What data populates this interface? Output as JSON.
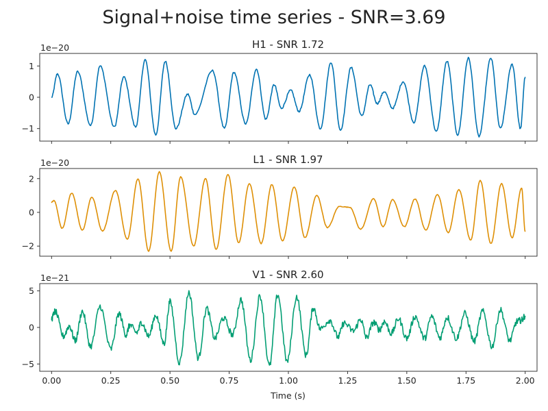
{
  "figure": {
    "suptitle": "Signal+noise time series - SNR=3.69",
    "xlabel": "Time (s)"
  },
  "chart_data": [
    {
      "type": "line",
      "title": "H1 - SNR 1.72",
      "offset_label": "1e−20",
      "color": "#0072b2",
      "xlim": [
        -0.05,
        2.05
      ],
      "ylim": [
        -1.4,
        1.4
      ],
      "xticks": [
        0.0,
        0.25,
        0.5,
        0.75,
        1.0,
        1.25,
        1.5,
        1.75,
        2.0
      ],
      "xtick_labels": [],
      "yticks": [
        -1,
        0,
        1
      ],
      "ytick_labels": [
        "−1",
        "0",
        "1"
      ],
      "noise": 0.03,
      "peaks": [
        [
          0.0,
          0.0
        ],
        [
          0.025,
          0.75
        ],
        [
          0.07,
          -0.85
        ],
        [
          0.11,
          0.82
        ],
        [
          0.165,
          -0.9
        ],
        [
          0.205,
          1.0
        ],
        [
          0.265,
          -0.95
        ],
        [
          0.305,
          0.65
        ],
        [
          0.355,
          -0.95
        ],
        [
          0.395,
          1.2
        ],
        [
          0.44,
          -1.2
        ],
        [
          0.48,
          1.15
        ],
        [
          0.525,
          -1.0
        ],
        [
          0.575,
          0.1
        ],
        [
          0.605,
          -0.55
        ],
        [
          0.68,
          0.85
        ],
        [
          0.73,
          -1.0
        ],
        [
          0.77,
          0.8
        ],
        [
          0.82,
          -0.85
        ],
        [
          0.865,
          0.9
        ],
        [
          0.905,
          -0.7
        ],
        [
          0.94,
          0.4
        ],
        [
          0.97,
          -0.35
        ],
        [
          1.01,
          0.22
        ],
        [
          1.045,
          -0.45
        ],
        [
          1.09,
          0.72
        ],
        [
          1.135,
          -1.0
        ],
        [
          1.18,
          1.12
        ],
        [
          1.22,
          -1.05
        ],
        [
          1.265,
          0.95
        ],
        [
          1.31,
          -0.6
        ],
        [
          1.345,
          0.4
        ],
        [
          1.375,
          -0.2
        ],
        [
          1.405,
          0.18
        ],
        [
          1.44,
          -0.35
        ],
        [
          1.485,
          0.5
        ],
        [
          1.53,
          -0.8
        ],
        [
          1.575,
          1.0
        ],
        [
          1.625,
          -1.1
        ],
        [
          1.67,
          1.15
        ],
        [
          1.715,
          -1.2
        ],
        [
          1.76,
          1.25
        ],
        [
          1.805,
          -1.25
        ],
        [
          1.855,
          1.25
        ],
        [
          1.895,
          -1.0
        ],
        [
          1.945,
          1.05
        ],
        [
          1.98,
          -1.0
        ],
        [
          2.0,
          0.65
        ]
      ]
    },
    {
      "type": "line",
      "title": "L1 - SNR 1.97",
      "offset_label": "1e−20",
      "color": "#de8f05",
      "xlim": [
        -0.05,
        2.05
      ],
      "ylim": [
        -2.6,
        2.6
      ],
      "xticks": [
        0.0,
        0.25,
        0.5,
        0.75,
        1.0,
        1.25,
        1.5,
        1.75,
        2.0
      ],
      "xtick_labels": [],
      "yticks": [
        -2,
        0,
        2
      ],
      "ytick_labels": [
        "−2",
        "0",
        "2"
      ],
      "noise": 0.02,
      "peaks": [
        [
          0.0,
          0.6
        ],
        [
          0.01,
          0.7
        ],
        [
          0.045,
          -0.95
        ],
        [
          0.085,
          1.15
        ],
        [
          0.13,
          -1.05
        ],
        [
          0.17,
          0.9
        ],
        [
          0.215,
          -1.1
        ],
        [
          0.27,
          1.3
        ],
        [
          0.32,
          -1.6
        ],
        [
          0.365,
          2.0
        ],
        [
          0.41,
          -2.3
        ],
        [
          0.455,
          2.4
        ],
        [
          0.505,
          -2.3
        ],
        [
          0.545,
          2.1
        ],
        [
          0.6,
          -2.0
        ],
        [
          0.65,
          2.0
        ],
        [
          0.695,
          -2.2
        ],
        [
          0.745,
          2.25
        ],
        [
          0.79,
          -1.8
        ],
        [
          0.835,
          1.7
        ],
        [
          0.885,
          -1.85
        ],
        [
          0.93,
          1.65
        ],
        [
          0.975,
          -1.7
        ],
        [
          1.025,
          1.5
        ],
        [
          1.07,
          -1.5
        ],
        [
          1.12,
          1.0
        ],
        [
          1.165,
          -0.9
        ],
        [
          1.215,
          0.35
        ],
        [
          1.26,
          0.3
        ],
        [
          1.305,
          -1.0
        ],
        [
          1.36,
          0.8
        ],
        [
          1.4,
          -0.85
        ],
        [
          1.44,
          0.75
        ],
        [
          1.49,
          -0.85
        ],
        [
          1.535,
          0.8
        ],
        [
          1.58,
          -1.05
        ],
        [
          1.63,
          1.05
        ],
        [
          1.675,
          -1.2
        ],
        [
          1.72,
          1.35
        ],
        [
          1.77,
          -1.65
        ],
        [
          1.81,
          1.9
        ],
        [
          1.855,
          -1.85
        ],
        [
          1.9,
          1.7
        ],
        [
          1.945,
          -1.5
        ],
        [
          1.985,
          1.45
        ],
        [
          2.0,
          -1.15
        ]
      ]
    },
    {
      "type": "line",
      "title": "V1 - SNR 2.60",
      "offset_label": "1e−21",
      "color": "#029e73",
      "xlim": [
        -0.05,
        2.05
      ],
      "ylim": [
        -6,
        6
      ],
      "xticks": [
        0.0,
        0.25,
        0.5,
        0.75,
        1.0,
        1.25,
        1.5,
        1.75,
        2.0
      ],
      "xtick_labels": [
        "0.00",
        "0.25",
        "0.50",
        "0.75",
        "1.00",
        "1.25",
        "1.50",
        "1.75",
        "2.00"
      ],
      "yticks": [
        -5,
        0,
        5
      ],
      "ytick_labels": [
        "−5",
        "0",
        "5"
      ],
      "noise": 0.45,
      "peaks": [
        [
          0.0,
          1.2
        ],
        [
          0.015,
          2.2
        ],
        [
          0.05,
          -1.2
        ],
        [
          0.075,
          0.2
        ],
        [
          0.1,
          -1.8
        ],
        [
          0.13,
          2.2
        ],
        [
          0.165,
          -2.6
        ],
        [
          0.205,
          2.9
        ],
        [
          0.25,
          -3.0
        ],
        [
          0.285,
          1.9
        ],
        [
          0.315,
          -1.0
        ],
        [
          0.33,
          0.3
        ],
        [
          0.36,
          -0.7
        ],
        [
          0.38,
          0.7
        ],
        [
          0.41,
          -1.2
        ],
        [
          0.44,
          1.7
        ],
        [
          0.475,
          -2.2
        ],
        [
          0.5,
          3.5
        ],
        [
          0.54,
          -4.8
        ],
        [
          0.58,
          4.8
        ],
        [
          0.62,
          -4.2
        ],
        [
          0.655,
          2.6
        ],
        [
          0.69,
          -1.5
        ],
        [
          0.725,
          1.3
        ],
        [
          0.765,
          -1.0
        ],
        [
          0.8,
          3.8
        ],
        [
          0.84,
          -4.5
        ],
        [
          0.88,
          4.3
        ],
        [
          0.92,
          -5.3
        ],
        [
          0.955,
          4.5
        ],
        [
          0.995,
          -4.7
        ],
        [
          1.035,
          4.2
        ],
        [
          1.075,
          -3.8
        ],
        [
          1.105,
          2.7
        ],
        [
          1.135,
          -0.2
        ],
        [
          1.175,
          1.0
        ],
        [
          1.21,
          -1.3
        ],
        [
          1.235,
          0.6
        ],
        [
          1.275,
          -0.5
        ],
        [
          1.305,
          1.1
        ],
        [
          1.33,
          -1.4
        ],
        [
          1.36,
          0.7
        ],
        [
          1.385,
          -0.3
        ],
        [
          1.405,
          0.8
        ],
        [
          1.435,
          -0.8
        ],
        [
          1.465,
          1.2
        ],
        [
          1.5,
          -1.5
        ],
        [
          1.535,
          1.5
        ],
        [
          1.575,
          -1.5
        ],
        [
          1.605,
          1.5
        ],
        [
          1.64,
          -1.4
        ],
        [
          1.67,
          1.4
        ],
        [
          1.71,
          -1.5
        ],
        [
          1.745,
          1.9
        ],
        [
          1.785,
          -1.9
        ],
        [
          1.82,
          2.2
        ],
        [
          1.86,
          -2.6
        ],
        [
          1.895,
          2.4
        ],
        [
          1.935,
          -1.8
        ],
        [
          1.965,
          0.8
        ],
        [
          1.985,
          1.0
        ],
        [
          2.0,
          1.6
        ]
      ]
    }
  ]
}
